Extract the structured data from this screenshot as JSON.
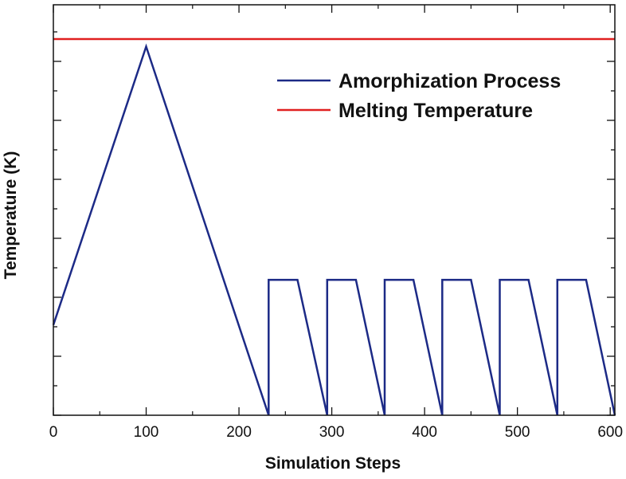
{
  "chart_data": {
    "type": "line",
    "title": "",
    "xlabel": "Simulation Steps",
    "ylabel": "Temperature (K)",
    "xlim": [
      0,
      605
    ],
    "ylim": [
      0,
      100
    ],
    "x_ticks": [
      0,
      100,
      200,
      300,
      400,
      500,
      600
    ],
    "x_tick_labels": [
      "0",
      "100",
      "200",
      "300",
      "400",
      "500",
      "600"
    ],
    "y_tick_labels": "hidden",
    "legend_position": "top-right",
    "series": [
      {
        "name": "Amorphization Process",
        "color": "#1c2a86",
        "x": [
          0,
          100,
          232,
          232,
          263,
          295,
          295,
          326,
          357,
          357,
          388,
          419,
          419,
          450,
          481,
          481,
          512,
          543,
          543,
          574,
          605
        ],
        "y": [
          24,
          98,
          0,
          36,
          36,
          0,
          36,
          36,
          0,
          36,
          36,
          0,
          36,
          36,
          0,
          36,
          36,
          0,
          36,
          36,
          0
        ]
      },
      {
        "name": "Melting Temperature",
        "color": "#e02020",
        "x": [
          0,
          605
        ],
        "y": [
          100,
          100
        ]
      }
    ]
  }
}
